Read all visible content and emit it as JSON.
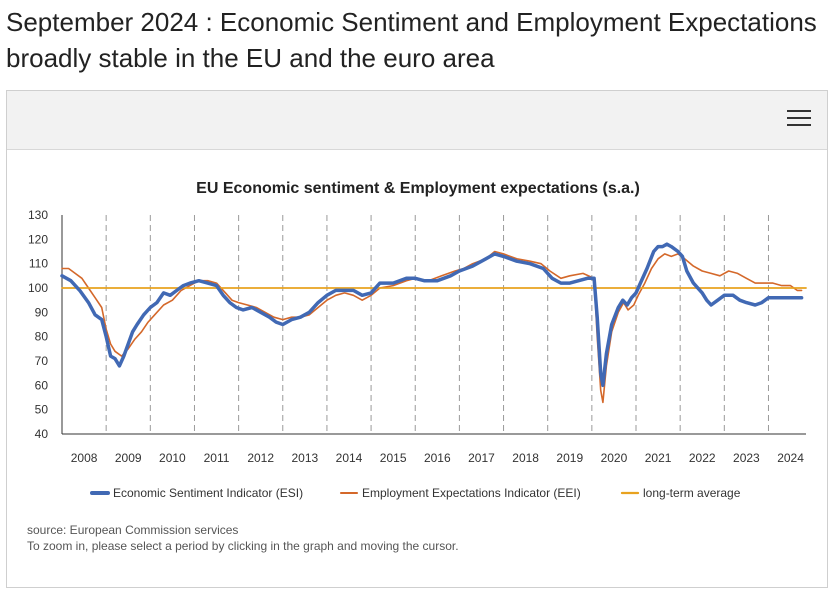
{
  "page": {
    "title": "September 2024 : Economic Sentiment and Employment Expectations broadly stable in the EU and the euro area"
  },
  "header": {
    "menu_icon": "hamburger-menu-icon"
  },
  "chart_data": {
    "type": "line",
    "title": "EU Economic sentiment & Employment expectations (s.a.)",
    "xlabel": "",
    "ylabel": "",
    "ylim": [
      40,
      130
    ],
    "yticks": [
      40,
      50,
      60,
      70,
      80,
      90,
      100,
      110,
      120,
      130
    ],
    "xlim": [
      2008.0,
      2024.85
    ],
    "year_labels": [
      "2008",
      "2009",
      "2010",
      "2011",
      "2012",
      "2013",
      "2014",
      "2015",
      "2016",
      "2017",
      "2018",
      "2019",
      "2020",
      "2021",
      "2022",
      "2023",
      "2024"
    ],
    "grid": "dashed vertical lines at year boundaries",
    "legend_position": "bottom",
    "series": [
      {
        "name": "Economic Sentiment Indicator (ESI)",
        "color": "#4169b4",
        "points": [
          [
            2008.0,
            105
          ],
          [
            2008.2,
            103
          ],
          [
            2008.4,
            99
          ],
          [
            2008.6,
            94
          ],
          [
            2008.75,
            89
          ],
          [
            2008.9,
            87
          ],
          [
            2009.0,
            80
          ],
          [
            2009.1,
            72
          ],
          [
            2009.2,
            71
          ],
          [
            2009.3,
            68
          ],
          [
            2009.4,
            72
          ],
          [
            2009.5,
            77
          ],
          [
            2009.6,
            82
          ],
          [
            2009.7,
            85
          ],
          [
            2009.85,
            89
          ],
          [
            2010.0,
            92
          ],
          [
            2010.15,
            94
          ],
          [
            2010.3,
            98
          ],
          [
            2010.45,
            97
          ],
          [
            2010.6,
            99
          ],
          [
            2010.75,
            101
          ],
          [
            2010.9,
            102
          ],
          [
            2011.1,
            103
          ],
          [
            2011.3,
            102
          ],
          [
            2011.5,
            101
          ],
          [
            2011.65,
            97
          ],
          [
            2011.8,
            94
          ],
          [
            2011.95,
            92
          ],
          [
            2012.1,
            91
          ],
          [
            2012.3,
            92
          ],
          [
            2012.5,
            90
          ],
          [
            2012.7,
            88
          ],
          [
            2012.85,
            86
          ],
          [
            2013.0,
            85
          ],
          [
            2013.2,
            87
          ],
          [
            2013.4,
            88
          ],
          [
            2013.6,
            90
          ],
          [
            2013.8,
            94
          ],
          [
            2014.0,
            97
          ],
          [
            2014.2,
            99
          ],
          [
            2014.4,
            99
          ],
          [
            2014.6,
            99
          ],
          [
            2014.8,
            97
          ],
          [
            2015.0,
            98
          ],
          [
            2015.2,
            102
          ],
          [
            2015.5,
            102
          ],
          [
            2015.8,
            104
          ],
          [
            2016.0,
            104
          ],
          [
            2016.2,
            103
          ],
          [
            2016.5,
            103
          ],
          [
            2016.8,
            105
          ],
          [
            2017.0,
            107
          ],
          [
            2017.3,
            109
          ],
          [
            2017.6,
            112
          ],
          [
            2017.8,
            114
          ],
          [
            2018.0,
            113
          ],
          [
            2018.3,
            111
          ],
          [
            2018.6,
            110
          ],
          [
            2018.9,
            108
          ],
          [
            2019.1,
            104
          ],
          [
            2019.3,
            102
          ],
          [
            2019.5,
            102
          ],
          [
            2019.7,
            103
          ],
          [
            2019.9,
            104
          ],
          [
            2020.05,
            104
          ],
          [
            2020.12,
            88
          ],
          [
            2020.2,
            65
          ],
          [
            2020.25,
            60
          ],
          [
            2020.33,
            73
          ],
          [
            2020.45,
            85
          ],
          [
            2020.6,
            92
          ],
          [
            2020.7,
            95
          ],
          [
            2020.8,
            93
          ],
          [
            2020.9,
            96
          ],
          [
            2021.0,
            98
          ],
          [
            2021.1,
            102
          ],
          [
            2021.25,
            108
          ],
          [
            2021.4,
            115
          ],
          [
            2021.5,
            117
          ],
          [
            2021.6,
            117
          ],
          [
            2021.7,
            118
          ],
          [
            2021.8,
            117
          ],
          [
            2021.95,
            115
          ],
          [
            2022.05,
            113
          ],
          [
            2022.15,
            107
          ],
          [
            2022.3,
            102
          ],
          [
            2022.5,
            98
          ],
          [
            2022.6,
            95
          ],
          [
            2022.7,
            93
          ],
          [
            2022.85,
            95
          ],
          [
            2023.0,
            97
          ],
          [
            2023.2,
            97
          ],
          [
            2023.35,
            95
          ],
          [
            2023.5,
            94
          ],
          [
            2023.7,
            93
          ],
          [
            2023.85,
            94
          ],
          [
            2024.0,
            96
          ],
          [
            2024.2,
            96
          ],
          [
            2024.4,
            96
          ],
          [
            2024.6,
            96
          ],
          [
            2024.75,
            96
          ]
        ]
      },
      {
        "name": "Employment Expectations Indicator (EEI)",
        "color": "#d4682a",
        "points": [
          [
            2008.0,
            108
          ],
          [
            2008.15,
            108
          ],
          [
            2008.3,
            106
          ],
          [
            2008.45,
            104
          ],
          [
            2008.6,
            100
          ],
          [
            2008.75,
            96
          ],
          [
            2008.9,
            92
          ],
          [
            2009.0,
            83
          ],
          [
            2009.1,
            77
          ],
          [
            2009.2,
            74
          ],
          [
            2009.35,
            72
          ],
          [
            2009.5,
            75
          ],
          [
            2009.65,
            79
          ],
          [
            2009.8,
            82
          ],
          [
            2009.95,
            86
          ],
          [
            2010.1,
            89
          ],
          [
            2010.3,
            93
          ],
          [
            2010.5,
            95
          ],
          [
            2010.7,
            99
          ],
          [
            2010.9,
            101
          ],
          [
            2011.1,
            103
          ],
          [
            2011.3,
            103
          ],
          [
            2011.5,
            102
          ],
          [
            2011.65,
            99
          ],
          [
            2011.85,
            95
          ],
          [
            2012.0,
            94
          ],
          [
            2012.2,
            93
          ],
          [
            2012.4,
            92
          ],
          [
            2012.6,
            90
          ],
          [
            2012.8,
            88
          ],
          [
            2013.0,
            87
          ],
          [
            2013.2,
            88
          ],
          [
            2013.4,
            88
          ],
          [
            2013.6,
            89
          ],
          [
            2013.8,
            92
          ],
          [
            2014.0,
            95
          ],
          [
            2014.2,
            97
          ],
          [
            2014.4,
            98
          ],
          [
            2014.6,
            97
          ],
          [
            2014.8,
            95
          ],
          [
            2015.0,
            97
          ],
          [
            2015.2,
            100
          ],
          [
            2015.5,
            101
          ],
          [
            2015.8,
            103
          ],
          [
            2016.0,
            104
          ],
          [
            2016.3,
            103
          ],
          [
            2016.6,
            105
          ],
          [
            2016.9,
            107
          ],
          [
            2017.1,
            108
          ],
          [
            2017.3,
            110
          ],
          [
            2017.6,
            112
          ],
          [
            2017.8,
            115
          ],
          [
            2018.0,
            114
          ],
          [
            2018.3,
            112
          ],
          [
            2018.6,
            111
          ],
          [
            2018.85,
            110
          ],
          [
            2019.05,
            107
          ],
          [
            2019.3,
            104
          ],
          [
            2019.5,
            105
          ],
          [
            2019.8,
            106
          ],
          [
            2020.05,
            104
          ],
          [
            2020.12,
            80
          ],
          [
            2020.2,
            58
          ],
          [
            2020.25,
            53
          ],
          [
            2020.33,
            68
          ],
          [
            2020.45,
            82
          ],
          [
            2020.6,
            90
          ],
          [
            2020.72,
            94
          ],
          [
            2020.82,
            91
          ],
          [
            2020.95,
            93
          ],
          [
            2021.05,
            97
          ],
          [
            2021.2,
            102
          ],
          [
            2021.35,
            108
          ],
          [
            2021.5,
            112
          ],
          [
            2021.65,
            114
          ],
          [
            2021.8,
            113
          ],
          [
            2021.95,
            114
          ],
          [
            2022.1,
            112
          ],
          [
            2022.3,
            109
          ],
          [
            2022.5,
            107
          ],
          [
            2022.7,
            106
          ],
          [
            2022.9,
            105
          ],
          [
            2023.1,
            107
          ],
          [
            2023.3,
            106
          ],
          [
            2023.5,
            104
          ],
          [
            2023.7,
            102
          ],
          [
            2023.9,
            102
          ],
          [
            2024.1,
            102
          ],
          [
            2024.3,
            101
          ],
          [
            2024.5,
            101
          ],
          [
            2024.65,
            99
          ],
          [
            2024.75,
            99
          ]
        ]
      },
      {
        "name": "long-term average",
        "color": "#e8a21f",
        "points": [
          [
            2008.0,
            100
          ],
          [
            2024.85,
            100
          ]
        ]
      }
    ]
  },
  "footer": {
    "source": "source: European Commission services",
    "hint": "To zoom in, please select a period by clicking in the graph and moving the cursor."
  }
}
